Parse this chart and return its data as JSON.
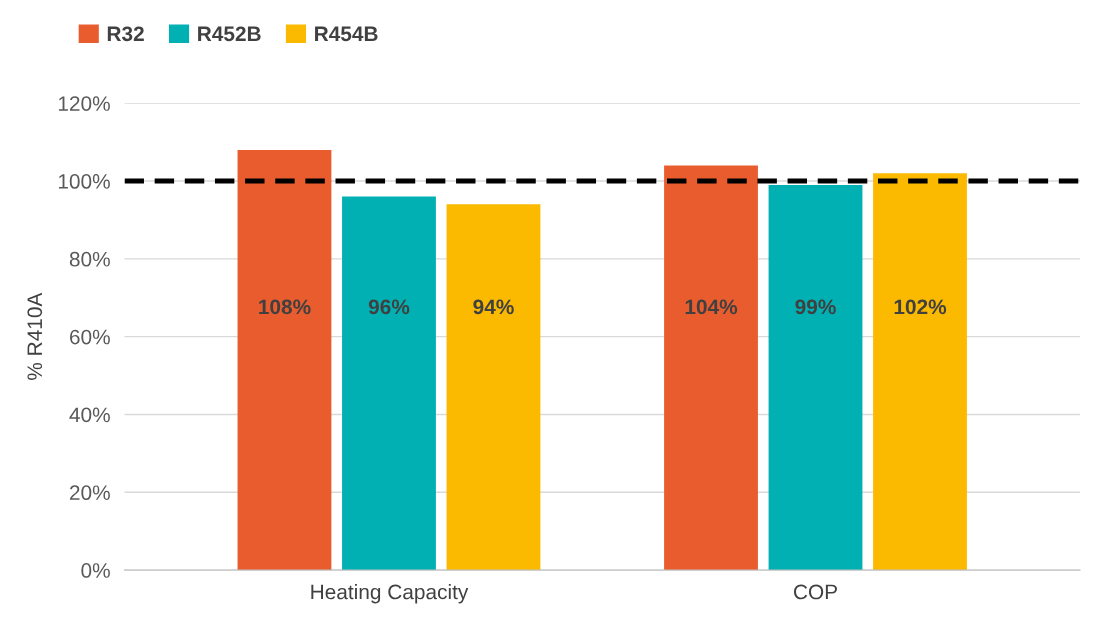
{
  "chart_data": {
    "type": "bar",
    "ylabel": "% R410A",
    "categories": [
      "Heating Capacity",
      "COP"
    ],
    "series": [
      {
        "name": "R32",
        "color": "#e95c2e",
        "values": [
          108,
          104
        ],
        "value_labels": [
          "108%",
          "104%"
        ]
      },
      {
        "name": "R452B",
        "color": "#00b0b3",
        "values": [
          96,
          99
        ],
        "value_labels": [
          "96%",
          "99%"
        ]
      },
      {
        "name": "R454B",
        "color": "#fbb900",
        "values": [
          94,
          102
        ],
        "value_labels": [
          "94%",
          "102%"
        ]
      }
    ],
    "ylim": [
      0,
      120
    ],
    "yticks": [
      {
        "value": 0,
        "label": "0%"
      },
      {
        "value": 20,
        "label": "20%"
      },
      {
        "value": 40,
        "label": "40%"
      },
      {
        "value": 60,
        "label": "60%"
      },
      {
        "value": 80,
        "label": "80%"
      },
      {
        "value": 100,
        "label": "100%"
      },
      {
        "value": 120,
        "label": "120%"
      }
    ],
    "ref_lines": [
      {
        "axis": "y",
        "value": 100,
        "color": "#000000",
        "line_style": "dashed"
      }
    ],
    "grid": "y",
    "legend": "top left"
  }
}
